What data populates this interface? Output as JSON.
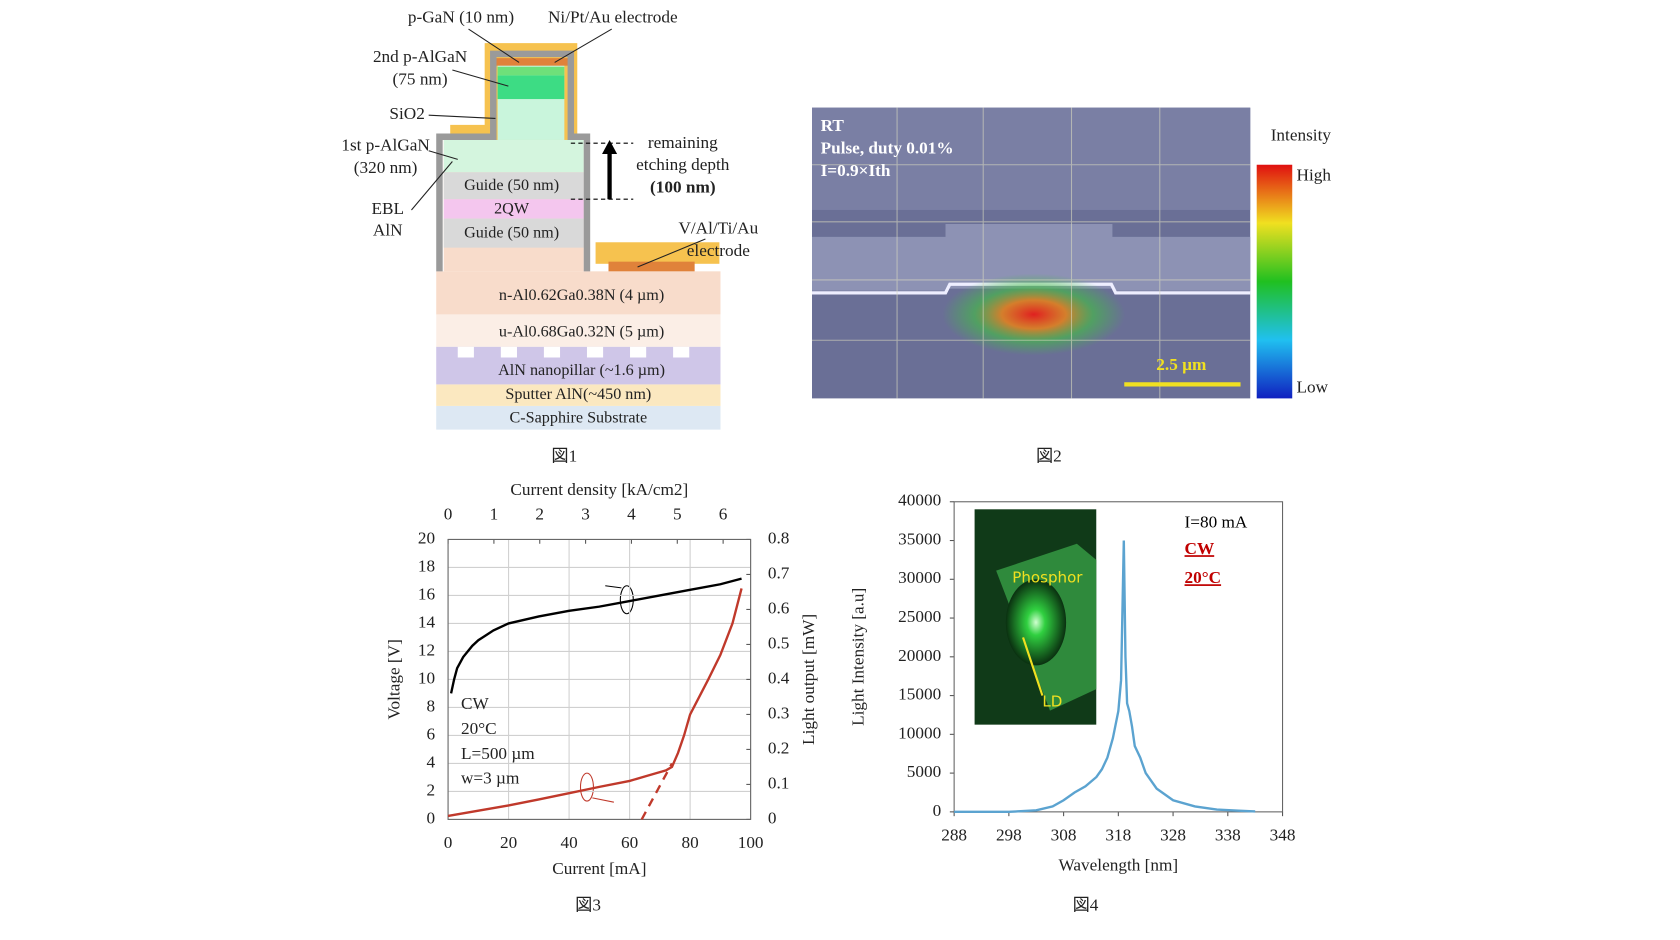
{
  "figure1": {
    "layers": [
      "C-Sapphire Substrate",
      "Sputter AlN(~450 nm)",
      "AlN nanopillar (~1.6 µm)",
      "u-Al0.68Ga0.32N (5 µm)",
      "n-Al0.62Ga0.38N (4 µm)",
      "Guide (50 nm)",
      "2QW",
      "Guide (50 nm)"
    ],
    "labels": [
      "p-GaN (10 nm)",
      "Ni/Pt/Au electrode",
      "2nd p-AlGaN",
      "(75 nm)",
      "SiO2",
      "1st p-AlGaN",
      "(320 nm)",
      "EBL",
      "AlN",
      "remaining",
      "etching depth",
      "(100 nm)",
      "V/Al/Ti/Au",
      "electrode"
    ]
  },
  "figure2": {
    "texts": [
      "RT",
      "Pulse, duty 0.01%",
      "I=0.9×Ith"
    ],
    "colorbar": {
      "title": "Intensity",
      "high": "High",
      "low": "Low"
    },
    "scale_bar": "2.5 µm"
  },
  "captions": [
    "図1",
    "図2",
    "図3",
    "図4"
  ],
  "chart_data": [
    {
      "type": "line",
      "grid": true,
      "xlabel": "Current [mA]",
      "ylabel": "Voltage [V]",
      "y2label": "Light output [mW]",
      "x2label": "Current density [kA/cm2]",
      "xlim": [
        0,
        100
      ],
      "xticks": [
        0,
        20,
        40,
        60,
        80,
        100
      ],
      "ylim": [
        0,
        20
      ],
      "yticks": [
        0,
        2,
        4,
        6,
        8,
        10,
        12,
        14,
        16,
        18,
        20
      ],
      "y2lim": [
        0,
        0.8
      ],
      "y2ticks": [
        0,
        0.1,
        0.2,
        0.3,
        0.4,
        0.5,
        0.6,
        0.7,
        0.8
      ],
      "x2lim": [
        0,
        6.6
      ],
      "x2ticks": [
        0,
        1,
        2,
        3,
        4,
        5,
        6
      ],
      "series": [
        {
          "color": "#000000",
          "x": [
            1,
            2,
            3,
            5,
            8,
            10,
            15,
            20,
            30,
            40,
            50,
            60,
            70,
            80,
            90,
            97
          ],
          "values": [
            9,
            10,
            10.8,
            11.6,
            12.4,
            12.8,
            13.5,
            14,
            14.5,
            14.9,
            15.2,
            15.6,
            16,
            16.4,
            16.8,
            17.2
          ]
        },
        {
          "color": "#c0392b",
          "axis": "y2",
          "x": [
            0,
            10,
            20,
            30,
            40,
            50,
            60,
            66,
            70,
            72,
            74,
            76,
            78,
            80,
            83,
            86,
            90,
            94,
            97
          ],
          "values": [
            0.01,
            0.025,
            0.04,
            0.057,
            0.075,
            0.093,
            0.11,
            0.125,
            0.135,
            0.14,
            0.15,
            0.19,
            0.24,
            0.3,
            0.35,
            0.4,
            0.47,
            0.56,
            0.66
          ]
        },
        {
          "color": "#c0392b",
          "axis": "y2",
          "dashed": true,
          "x": [
            64,
            74
          ],
          "values": [
            0,
            0.16
          ]
        }
      ],
      "annotations": [
        {
          "text": "CW"
        },
        {
          "text": "20°C"
        },
        {
          "text": "L=500 µm"
        },
        {
          "text": "w=3 µm"
        }
      ]
    },
    {
      "type": "line",
      "grid": false,
      "xlabel": "Wavelength [nm]",
      "ylabel": "Light Intensity [a.u]",
      "xlim": [
        288,
        348
      ],
      "xticks": [
        288,
        298,
        308,
        318,
        328,
        338,
        348
      ],
      "ylim": [
        0,
        40000
      ],
      "yticks": [
        0,
        5000,
        10000,
        15000,
        20000,
        25000,
        30000,
        35000,
        40000
      ],
      "series": [
        {
          "color": "#5ba3d0",
          "x": [
            288,
            298,
            303,
            306,
            308,
            310,
            312,
            314,
            315,
            316,
            317,
            318,
            318.5,
            319,
            319.3,
            319.6,
            320,
            320.5,
            321,
            322,
            323,
            325,
            328,
            332,
            336,
            340,
            343
          ],
          "values": [
            0,
            0,
            200,
            700,
            1500,
            2500,
            3300,
            4500,
            5500,
            7000,
            9500,
            13000,
            17000,
            35000,
            20000,
            14000,
            13000,
            11000,
            8500,
            7000,
            5000,
            3000,
            1500,
            700,
            300,
            150,
            50
          ]
        }
      ],
      "annotations": [
        {
          "text": "I=80 mA",
          "color": "#000000"
        },
        {
          "text": "CW",
          "color": "#c00000",
          "bold": true,
          "underline": true
        },
        {
          "text": "20°C",
          "color": "#c00000",
          "bold": true,
          "underline": true
        }
      ],
      "inset": [
        "Phosphor",
        "LD"
      ]
    }
  ]
}
